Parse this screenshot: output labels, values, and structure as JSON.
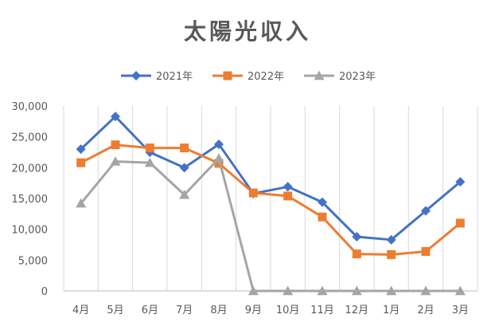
{
  "chart_data": {
    "type": "line",
    "title": "太陽光収入",
    "xlabel": "",
    "ylabel": "",
    "categories": [
      "4月",
      "5月",
      "6月",
      "7月",
      "8月",
      "9月",
      "10月",
      "11月",
      "12月",
      "1月",
      "2月",
      "3月"
    ],
    "y_ticks": [
      "0",
      "5,000",
      "10,000",
      "15,000",
      "20,000",
      "25,000",
      "30,000"
    ],
    "ylim": [
      0,
      30000
    ],
    "grid": "vertical",
    "legend_position": "top",
    "series": [
      {
        "name": "2021年",
        "color": "#4472C4",
        "marker": "diamond",
        "values": [
          23000,
          28300,
          22500,
          20000,
          23800,
          15800,
          16900,
          14400,
          8800,
          8300,
          13000,
          17700
        ]
      },
      {
        "name": "2022年",
        "color": "#ED7D31",
        "marker": "square",
        "values": [
          20800,
          23700,
          23200,
          23200,
          20700,
          15900,
          15400,
          12000,
          6000,
          5900,
          6400,
          11000
        ]
      },
      {
        "name": "2023年",
        "color": "#A5A5A5",
        "marker": "triangle",
        "values": [
          14200,
          21000,
          20800,
          15600,
          21500,
          0,
          0,
          0,
          0,
          0,
          0,
          0
        ]
      }
    ]
  }
}
